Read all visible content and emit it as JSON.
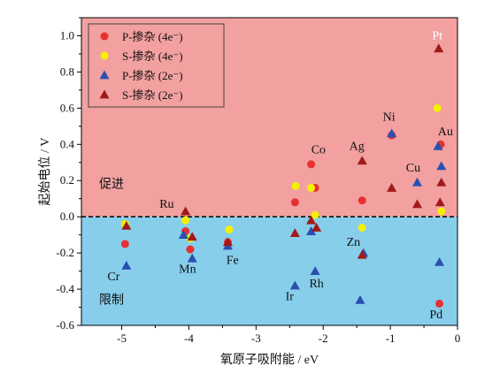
{
  "chart_data": {
    "type": "scatter",
    "title": "",
    "xlabel": "氧原子吸附能 / eV",
    "ylabel": "起始电位 / V",
    "xlim": [
      -5.6,
      0.0
    ],
    "ylim": [
      -0.6,
      1.1
    ],
    "xticks": [
      -5,
      -4,
      -3,
      -2,
      -1,
      0
    ],
    "yticks": [
      -0.6,
      -0.4,
      -0.2,
      0.0,
      0.2,
      0.4,
      0.6,
      0.8,
      1.0
    ],
    "xtick_labels": [
      "-5",
      "-4",
      "-3",
      "-2",
      "-1",
      "0"
    ],
    "ytick_labels": [
      "-0.6",
      "-0.4",
      "-0.2",
      "0.0",
      "0.2",
      "0.4",
      "0.6",
      "0.8",
      "1.0"
    ],
    "divider_y": 0.0,
    "regions": [
      {
        "label": "促进",
        "range": [
          0.0,
          1.1
        ],
        "color": "#f2a0a0"
      },
      {
        "label": "限制",
        "range": [
          -0.6,
          0.0
        ],
        "color": "#87ceeb"
      }
    ],
    "legend": {
      "position": "top-left",
      "entries": [
        {
          "label": "P-掺杂 (4e⁻)",
          "marker": "circle",
          "color": "#e83030"
        },
        {
          "label": "S-掺杂 (4e⁻)",
          "marker": "circle",
          "color": "#f5f000"
        },
        {
          "label": "P-掺杂 (2e⁻)",
          "marker": "triangle",
          "color": "#2a4fb0"
        },
        {
          "label": "S-掺杂 (2e⁻)",
          "marker": "triangle",
          "color": "#a01a1a"
        }
      ]
    },
    "series": [
      {
        "name": "P-掺杂 (4e⁻)",
        "marker": "circle",
        "color": "#e83030",
        "points": [
          {
            "x": -4.95,
            "y": -0.15
          },
          {
            "x": -4.05,
            "y": -0.08
          },
          {
            "x": -3.98,
            "y": -0.18
          },
          {
            "x": -3.42,
            "y": -0.14
          },
          {
            "x": -2.42,
            "y": 0.08
          },
          {
            "x": -2.18,
            "y": 0.29
          },
          {
            "x": -2.12,
            "y": 0.16
          },
          {
            "x": -1.42,
            "y": 0.09
          },
          {
            "x": -0.98,
            "y": 0.45
          },
          {
            "x": -0.25,
            "y": 0.4
          },
          {
            "x": -0.27,
            "y": -0.48
          }
        ]
      },
      {
        "name": "S-掺杂 (4e⁻)",
        "marker": "circle",
        "color": "#f5f000",
        "points": [
          {
            "x": -4.95,
            "y": -0.04
          },
          {
            "x": -4.05,
            "y": -0.02
          },
          {
            "x": -3.98,
            "y": -0.12
          },
          {
            "x": -3.4,
            "y": -0.07
          },
          {
            "x": -2.41,
            "y": 0.17
          },
          {
            "x": -2.18,
            "y": 0.16
          },
          {
            "x": -2.12,
            "y": 0.01
          },
          {
            "x": -1.42,
            "y": -0.06
          },
          {
            "x": -0.3,
            "y": 0.6
          },
          {
            "x": -0.24,
            "y": 0.03
          }
        ]
      },
      {
        "name": "P-掺杂 (2e⁻)",
        "marker": "triangle",
        "color": "#2a4fb0",
        "points": [
          {
            "x": -4.93,
            "y": -0.27
          },
          {
            "x": -4.08,
            "y": -0.1
          },
          {
            "x": -3.95,
            "y": -0.23
          },
          {
            "x": -3.42,
            "y": -0.16
          },
          {
            "x": -2.42,
            "y": -0.38
          },
          {
            "x": -2.18,
            "y": -0.08
          },
          {
            "x": -2.12,
            "y": -0.3
          },
          {
            "x": -1.45,
            "y": -0.46
          },
          {
            "x": -1.4,
            "y": -0.2
          },
          {
            "x": -0.98,
            "y": 0.46
          },
          {
            "x": -0.6,
            "y": 0.19
          },
          {
            "x": -0.29,
            "y": 0.39
          },
          {
            "x": -0.24,
            "y": 0.28
          },
          {
            "x": -0.27,
            "y": -0.25
          }
        ]
      },
      {
        "name": "S-掺杂 (2e⁻)",
        "marker": "triangle",
        "color": "#a01a1a",
        "points": [
          {
            "x": -4.93,
            "y": -0.05
          },
          {
            "x": -4.05,
            "y": 0.03
          },
          {
            "x": -3.95,
            "y": -0.11
          },
          {
            "x": -3.42,
            "y": -0.14
          },
          {
            "x": -2.42,
            "y": -0.09
          },
          {
            "x": -2.18,
            "y": -0.02
          },
          {
            "x": -2.1,
            "y": -0.06
          },
          {
            "x": -1.42,
            "y": 0.31
          },
          {
            "x": -1.42,
            "y": -0.21
          },
          {
            "x": -0.98,
            "y": 0.16
          },
          {
            "x": -0.6,
            "y": 0.07
          },
          {
            "x": -0.28,
            "y": 0.93
          },
          {
            "x": -0.24,
            "y": 0.19
          },
          {
            "x": -0.26,
            "y": 0.08
          }
        ]
      }
    ],
    "annotations": [
      {
        "text": "Pt",
        "x": -0.3,
        "y": 0.98,
        "color": "#ffffff"
      },
      {
        "text": "Au",
        "x": -0.18,
        "y": 0.45
      },
      {
        "text": "Ni",
        "x": -1.02,
        "y": 0.53
      },
      {
        "text": "Ag",
        "x": -1.5,
        "y": 0.37
      },
      {
        "text": "Co",
        "x": -2.07,
        "y": 0.35
      },
      {
        "text": "Cu",
        "x": -0.66,
        "y": 0.25
      },
      {
        "text": "Ru",
        "x": -4.33,
        "y": 0.05
      },
      {
        "text": "Zn",
        "x": -1.55,
        "y": -0.16
      },
      {
        "text": "Cr",
        "x": -5.12,
        "y": -0.35
      },
      {
        "text": "Mn",
        "x": -4.02,
        "y": -0.31
      },
      {
        "text": "Fe",
        "x": -3.35,
        "y": -0.26
      },
      {
        "text": "Rh",
        "x": -2.1,
        "y": -0.39
      },
      {
        "text": "Ir",
        "x": -2.5,
        "y": -0.46
      },
      {
        "text": "Pd",
        "x": -0.32,
        "y": -0.56
      }
    ]
  }
}
